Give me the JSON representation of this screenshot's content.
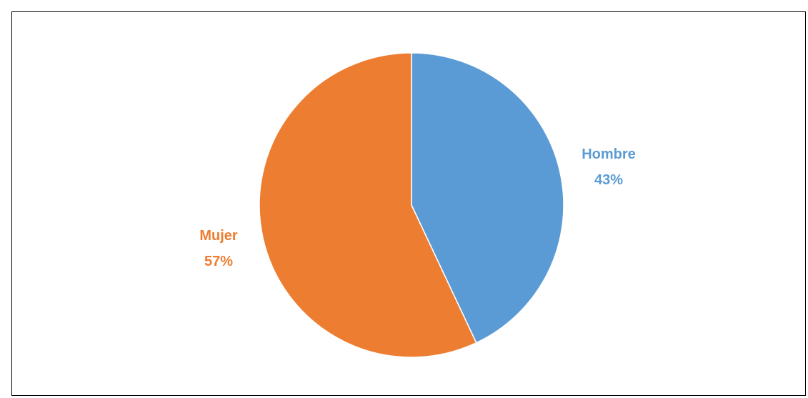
{
  "chart_data": {
    "type": "pie",
    "title": "",
    "slices": [
      {
        "label": "Hombre",
        "value": 43,
        "display": "43%",
        "color": "#5B9BD5"
      },
      {
        "label": "Mujer",
        "value": 57,
        "display": "57%",
        "color": "#ED7D31"
      }
    ],
    "start_angle": "12 o'clock",
    "direction": "clockwise",
    "legend": "none",
    "data_labels": "outside, category name and percentage"
  }
}
